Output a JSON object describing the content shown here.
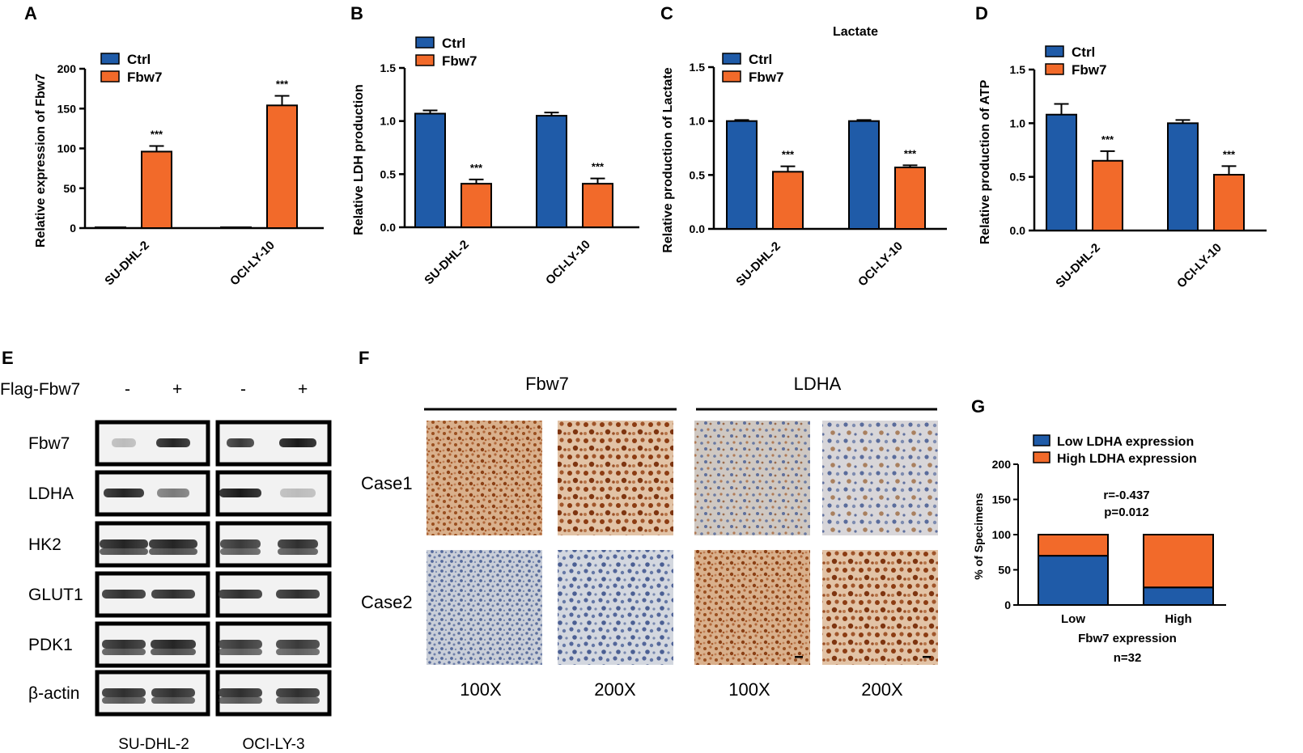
{
  "colors": {
    "ctrl": "#1f5ba8",
    "fbw7": "#f26a2a",
    "low": "#1f5ba8",
    "high": "#f26a2a"
  },
  "chart_data": [
    {
      "id": "A",
      "type": "bar",
      "categories": [
        "SU-DHL-2",
        "OCI-LY-10"
      ],
      "series": [
        {
          "name": "Ctrl",
          "values": [
            1,
            1
          ],
          "errors": [
            0,
            0
          ]
        },
        {
          "name": "Fbw7",
          "values": [
            96,
            154
          ],
          "errors": [
            7,
            12
          ]
        }
      ],
      "significance": [
        "***",
        "***"
      ],
      "title": "",
      "ylabel": "Relative expression of Fbw7",
      "ylim": [
        0,
        200
      ],
      "yticks": [
        "0",
        "50",
        "100",
        "150",
        "200"
      ],
      "legend": "top-left"
    },
    {
      "id": "B",
      "type": "bar",
      "categories": [
        "SU-DHL-2",
        "OCI-LY-10"
      ],
      "series": [
        {
          "name": "Ctrl",
          "values": [
            1.07,
            1.05
          ],
          "errors": [
            0.03,
            0.03
          ]
        },
        {
          "name": "Fbw7",
          "values": [
            0.41,
            0.41
          ],
          "errors": [
            0.04,
            0.05
          ]
        }
      ],
      "significance": [
        "***",
        "***"
      ],
      "title": "",
      "ylabel": "Relative LDH production",
      "ylim": [
        0,
        1.5
      ],
      "yticks": [
        "0.0",
        "0.5",
        "1.0",
        "1.5"
      ],
      "legend": "top-left"
    },
    {
      "id": "C",
      "type": "bar",
      "categories": [
        "SU-DHL-2",
        "OCI-LY-10"
      ],
      "series": [
        {
          "name": "Ctrl",
          "values": [
            1.0,
            1.0
          ],
          "errors": [
            0.01,
            0.01
          ]
        },
        {
          "name": "Fbw7",
          "values": [
            0.53,
            0.57
          ],
          "errors": [
            0.05,
            0.02
          ]
        }
      ],
      "significance": [
        "***",
        "***"
      ],
      "title": "Lactate",
      "ylabel": "Relative production of Lactate",
      "ylim": [
        0,
        1.5
      ],
      "yticks": [
        "0.0",
        "0.5",
        "1.0",
        "1.5"
      ],
      "legend": "top-left"
    },
    {
      "id": "D",
      "type": "bar",
      "categories": [
        "SU-DHL-2",
        "OCI-LY-10"
      ],
      "series": [
        {
          "name": "Ctrl",
          "values": [
            1.08,
            1.0
          ],
          "errors": [
            0.1,
            0.03
          ]
        },
        {
          "name": "Fbw7",
          "values": [
            0.65,
            0.52
          ],
          "errors": [
            0.09,
            0.08
          ]
        }
      ],
      "significance": [
        "***",
        "***"
      ],
      "title": "",
      "ylabel": "Relative production of ATP",
      "ylim": [
        0,
        1.5
      ],
      "yticks": [
        "0.0",
        "0.5",
        "1.0",
        "1.5"
      ],
      "legend": "top-left"
    },
    {
      "id": "G",
      "type": "bar",
      "stacked": true,
      "categories": [
        "Low",
        "High"
      ],
      "series": [
        {
          "name": "Low LDHA expression",
          "values": [
            70,
            25
          ]
        },
        {
          "name": "High LDHA expression",
          "values": [
            30,
            75
          ]
        }
      ],
      "title": "",
      "ylabel": "% of Specimens",
      "xlabel": "Fbw7 expression",
      "xnote": "n=32",
      "annotation": [
        "r=-0.437",
        "p=0.012"
      ],
      "ylim": [
        0,
        200
      ],
      "yticks": [
        "0",
        "50",
        "100",
        "150",
        "200"
      ],
      "legend": "top"
    }
  ],
  "panel_letters": [
    "A",
    "B",
    "C",
    "D",
    "E",
    "F",
    "G"
  ],
  "blot": {
    "header": "Flag-Fbw7",
    "lanes": [
      "-",
      "+",
      "-",
      "+"
    ],
    "proteins": [
      "Fbw7",
      "LDHA",
      "HK2",
      "GLUT1",
      "PDK1",
      "β-actin"
    ],
    "cell_lines": [
      "SU-DHL-2",
      "OCI-LY-3"
    ]
  },
  "ihc": {
    "groups": [
      "Fbw7",
      "LDHA"
    ],
    "cases": [
      "Case1",
      "Case2"
    ],
    "magnifications": [
      "100X",
      "200X",
      "100X",
      "200X"
    ]
  }
}
